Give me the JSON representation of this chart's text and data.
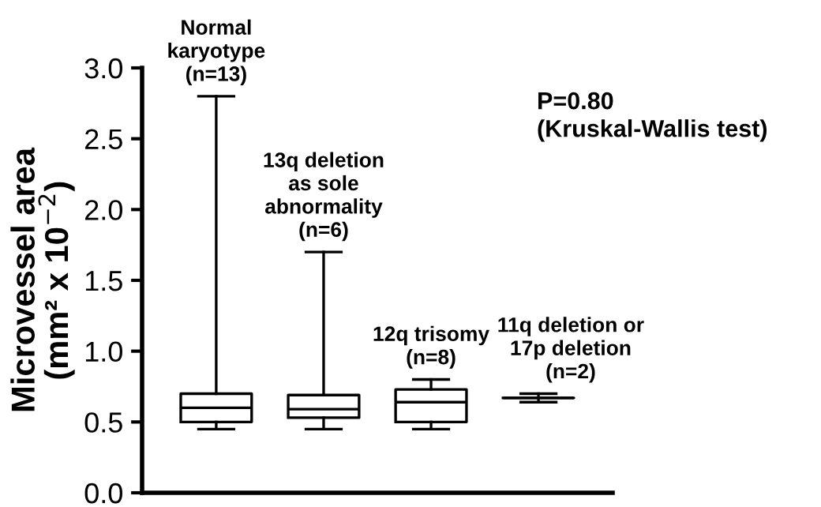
{
  "chart_data": {
    "type": "box",
    "ylabel": "Microvessel area\n(mm² x 10$^{−2}$)",
    "categories": [
      null,
      null,
      null,
      null
    ],
    "boxes": [
      {
        "low": 0.45,
        "q1": 0.5,
        "median": 0.6,
        "q3": 0.7,
        "high": 2.8
      },
      {
        "low": 0.45,
        "q1": 0.53,
        "median": 0.59,
        "q3": 0.69,
        "high": 1.7
      },
      {
        "low": 0.45,
        "q1": 0.5,
        "median": 0.64,
        "q3": 0.73,
        "high": 0.8
      },
      {
        "low": 0.64,
        "q1": 0.67,
        "median": 0.67,
        "q3": 0.67,
        "high": 0.7
      }
    ],
    "color": "#000000",
    "ylim": [
      0,
      3.0
    ],
    "yticks": [
      {
        "value": 0,
        "label": "0.0"
      },
      0.5,
      {
        "value": 1,
        "label": "1.0"
      },
      1.5,
      {
        "value": 2,
        "label": "2.0"
      },
      2.5,
      {
        "value": 3,
        "label": "3.0"
      }
    ],
    "annotations": [
      "Normal\nkaryotype\n(n=13)",
      "13q deletion\nas sole\nabnormality\n(n=6)",
      "12q trisomy\n(n=8)",
      "11q deletion or\n17p deletion\n(n=2)",
      "P=0.80\n(Kruskal-Wallis test)"
    ],
    "grid": false
  }
}
